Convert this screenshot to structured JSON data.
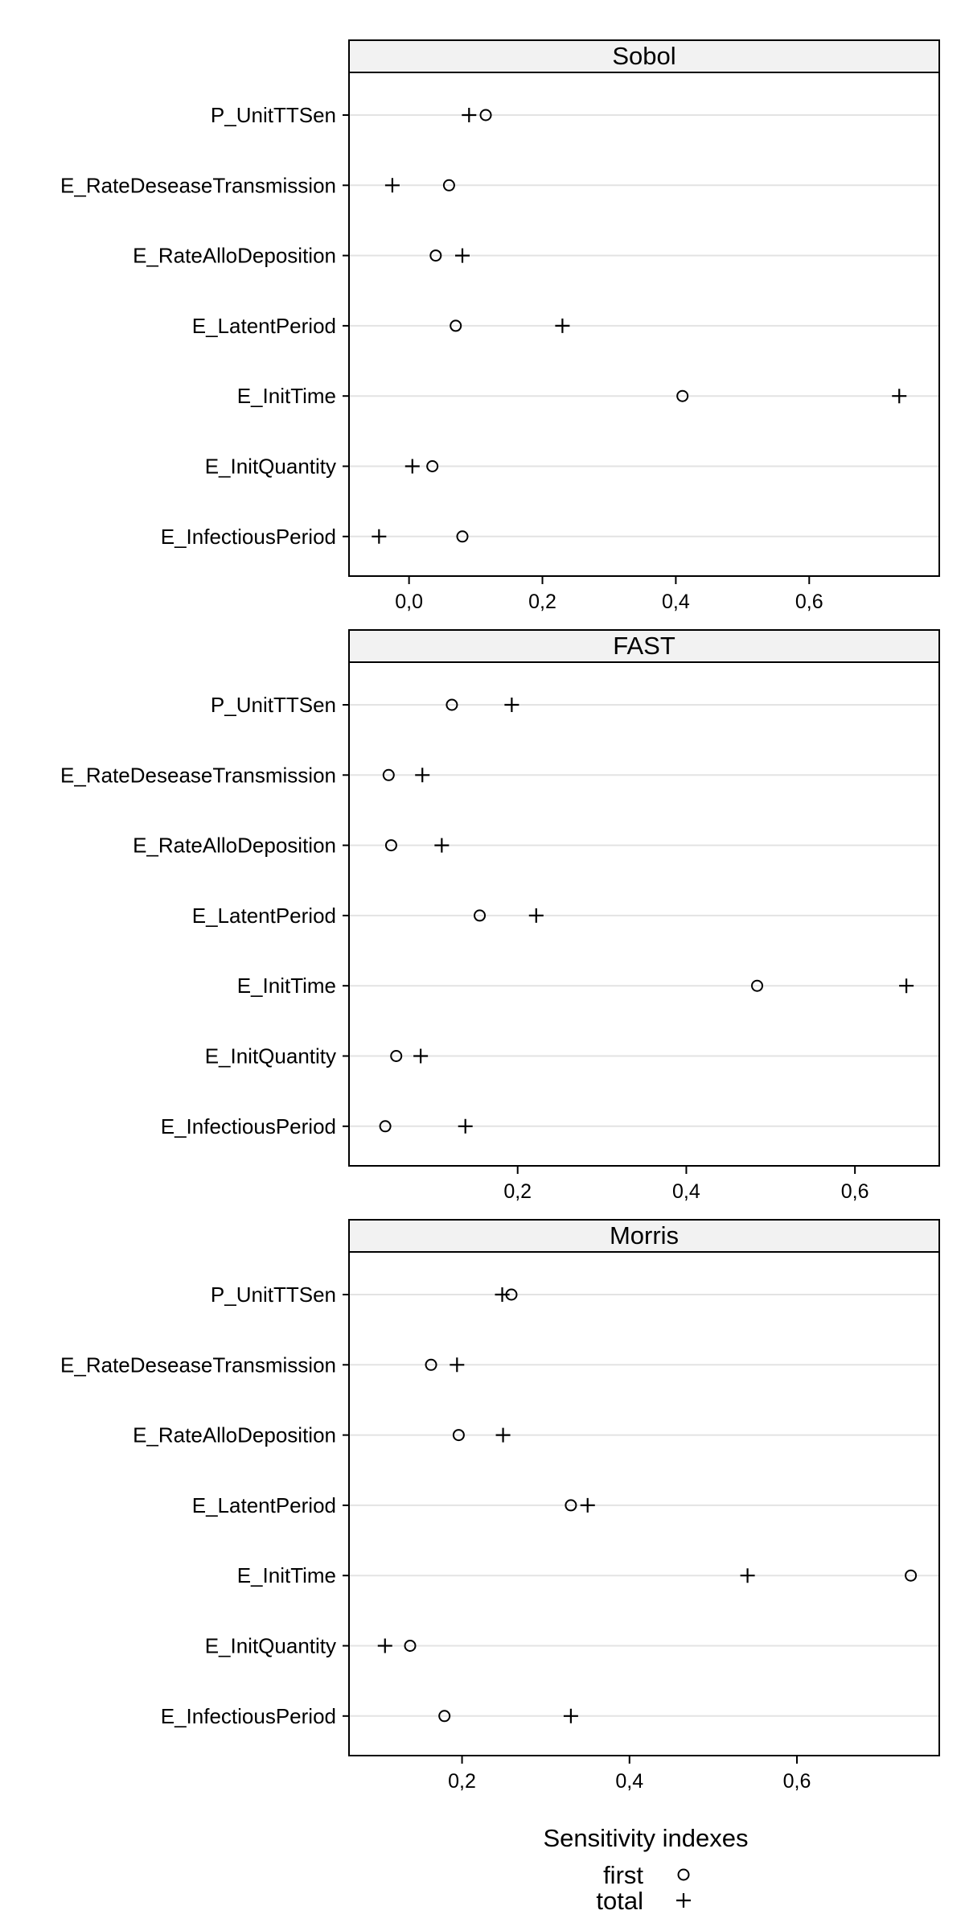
{
  "chart_data": {
    "type": "scatter",
    "subtype": "dotplot-multipanel",
    "xlabel": "Sensitivity indexes",
    "categories": [
      "P_UnitTTSen",
      "E_RateDeseaseTransmission",
      "E_RateAlloDeposition",
      "E_LatentPeriod",
      "E_InitTime",
      "E_InitQuantity",
      "E_InfectiousPeriod"
    ],
    "legend": {
      "position": "bottom",
      "entries": [
        {
          "label": "first",
          "symbol": "open-circle"
        },
        {
          "label": "total",
          "symbol": "plus"
        }
      ]
    },
    "grid": true,
    "panels": [
      {
        "title": "Sobol",
        "xlim": [
          -0.09,
          0.795
        ],
        "xticks": [
          0.0,
          0.2,
          0.4,
          0.6
        ],
        "xtick_labels": [
          "0,0",
          "0,2",
          "0,4",
          "0,6"
        ],
        "series": [
          {
            "name": "first",
            "values": [
              0.115,
              0.06,
              0.04,
              0.07,
              0.41,
              0.035,
              0.08
            ]
          },
          {
            "name": "total",
            "values": [
              0.09,
              -0.025,
              0.08,
              0.23,
              0.735,
              0.005,
              -0.045
            ]
          }
        ]
      },
      {
        "title": "FAST",
        "xlim": [
          0.0,
          0.7
        ],
        "xticks": [
          0.2,
          0.4,
          0.6
        ],
        "xtick_labels": [
          "0,2",
          "0,4",
          "0,6"
        ],
        "series": [
          {
            "name": "first",
            "values": [
              0.122,
              0.047,
              0.05,
              0.155,
              0.484,
              0.056,
              0.043
            ]
          },
          {
            "name": "total",
            "values": [
              0.193,
              0.087,
              0.11,
              0.222,
              0.661,
              0.085,
              0.138
            ]
          }
        ]
      },
      {
        "title": "Morris",
        "xlim": [
          0.065,
          0.77
        ],
        "xticks": [
          0.2,
          0.4,
          0.6
        ],
        "xtick_labels": [
          "0,2",
          "0,4",
          "0,6"
        ],
        "series": [
          {
            "name": "first",
            "values": [
              0.259,
              0.163,
              0.196,
              0.33,
              0.736,
              0.138,
              0.179
            ]
          },
          {
            "name": "total",
            "values": [
              0.248,
              0.194,
              0.249,
              0.35,
              0.541,
              0.108,
              0.33
            ]
          }
        ]
      }
    ]
  }
}
